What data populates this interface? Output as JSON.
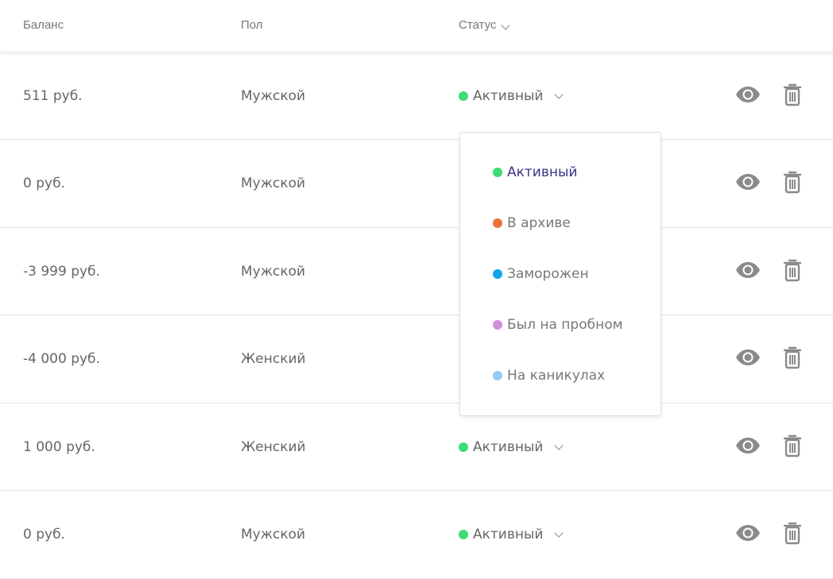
{
  "header": {
    "balance": "Баланс",
    "gender": "Пол",
    "status": "Статус"
  },
  "rows": [
    {
      "balance": "511 руб.",
      "gender": "Мужской",
      "status": "Активный",
      "status_color": "#3ddc75"
    },
    {
      "balance": "0 руб.",
      "gender": "Мужской"
    },
    {
      "balance": "-3 999 руб.",
      "gender": "Мужской"
    },
    {
      "balance": "-4 000 руб.",
      "gender": "Женский"
    },
    {
      "balance": "1 000 руб.",
      "gender": "Женский",
      "status": "Активный",
      "status_color": "#3ddc75"
    },
    {
      "balance": "0 руб.",
      "gender": "Мужской",
      "status": "Активный",
      "status_color": "#3ddc75"
    }
  ],
  "dropdown": {
    "options": [
      {
        "label": "Активный",
        "color": "#3ddc75",
        "selected": true
      },
      {
        "label": "В архиве",
        "color": "#e8703a"
      },
      {
        "label": "Заморожен",
        "color": "#0ea5e9"
      },
      {
        "label": "Был на пробном",
        "color": "#cf8fdc"
      },
      {
        "label": "На каникулах",
        "color": "#93c9f5"
      }
    ]
  },
  "icons": {
    "view": "eye-icon",
    "delete": "trash-icon"
  }
}
